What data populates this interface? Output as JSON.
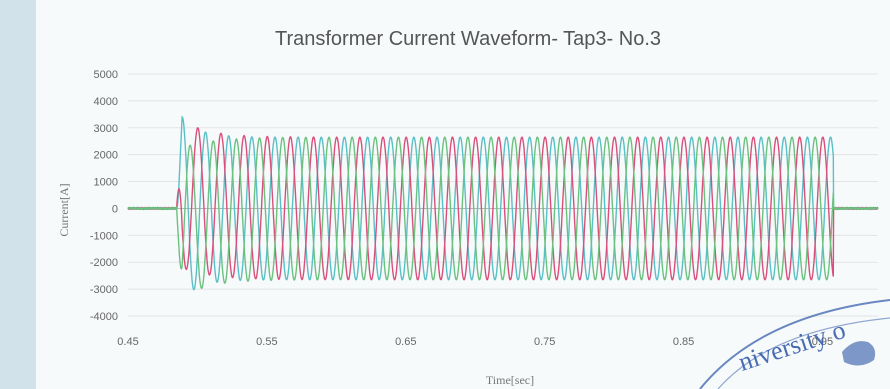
{
  "chart_data": {
    "type": "line",
    "title": "Transformer Current Waveform- Tap3- No.3",
    "xlabel": "Time[sec]",
    "ylabel": "Current[A]",
    "xlim": [
      0.45,
      0.99
    ],
    "ylim": [
      -4000,
      5000
    ],
    "x_ticks": [
      "0.45",
      "0.55",
      "0.65",
      "0.75",
      "0.85",
      "0.95"
    ],
    "y_ticks": [
      "5000",
      "4000",
      "3000",
      "2000",
      "1000",
      "0",
      "-1000",
      "-2000",
      "-3000",
      "-4000"
    ],
    "legend": "none",
    "grid": "horizontal",
    "series": [
      {
        "color": "#5bbfc6",
        "phase_deg": 0,
        "peak_inrush": 3700
      },
      {
        "color": "#d94f7b",
        "phase_deg": 120,
        "peak_inrush": 2800
      },
      {
        "color": "#6cc17e",
        "phase_deg": 240,
        "peak_inrush": 2900
      }
    ],
    "waveform": {
      "frequency_hz": 60,
      "steady_amplitude": 2650,
      "start_time": 0.485,
      "end_time": 0.958,
      "inrush_peaks": [
        3700,
        -3350
      ],
      "pre_noise_level": 30
    }
  },
  "stamp": {
    "text": "niversity o"
  }
}
